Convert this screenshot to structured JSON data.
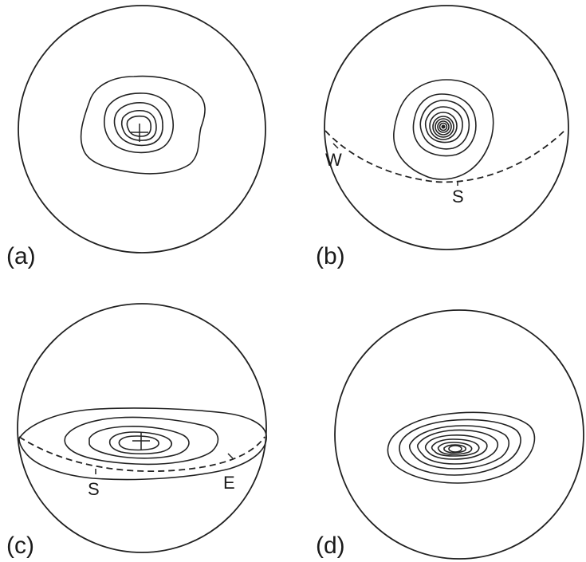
{
  "panels": [
    {
      "id": "a",
      "label": "(a)"
    },
    {
      "id": "b",
      "label": "(b)",
      "directions": [
        "W",
        "S"
      ]
    },
    {
      "id": "c",
      "label": "(c)",
      "directions": [
        "S",
        "E"
      ]
    },
    {
      "id": "d",
      "label": "(d)"
    }
  ],
  "colors": {
    "line": "#222222",
    "background": "#ffffff"
  },
  "icons": {
    "center_marker": "plus-cross"
  }
}
